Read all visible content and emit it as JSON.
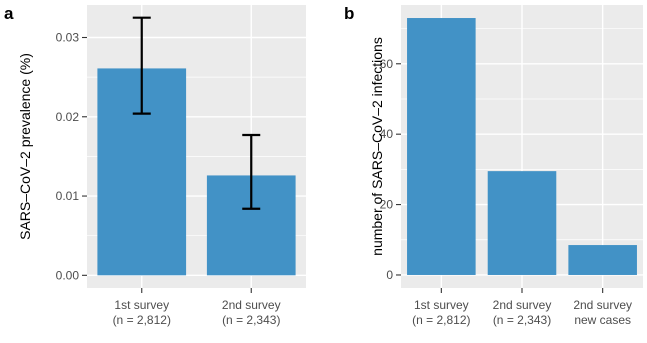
{
  "chart_data": [
    {
      "panel_label": "a",
      "type": "bar",
      "categories": [
        [
          "1st survey",
          "(n = 2,812)"
        ],
        [
          "2nd survey",
          "(n = 2,343)"
        ]
      ],
      "values": [
        0.0261,
        0.0126
      ],
      "error_bars": [
        {
          "low": 0.0204,
          "high": 0.0325
        },
        {
          "low": 0.0084,
          "high": 0.0177
        }
      ],
      "ylabel": "SARS–CoV–2 prevalence (%)",
      "xlabel": "",
      "yticks": [
        0.0,
        0.01,
        0.02,
        0.03
      ],
      "ytick_labels": [
        "0.00",
        "0.01",
        "0.02",
        "0.03"
      ],
      "ylim": [
        -0.0016,
        0.0341
      ],
      "bar_color": "#4292c6",
      "grid": true
    },
    {
      "panel_label": "b",
      "type": "bar",
      "categories": [
        [
          "1st survey",
          "(n = 2,812)"
        ],
        [
          "2nd survey",
          "(n = 2,343)"
        ],
        [
          "2nd survey",
          "new cases"
        ]
      ],
      "values": [
        73,
        29.5,
        8.5
      ],
      "ylabel": "number of SARS–CoV–2 infections",
      "xlabel": "",
      "yticks": [
        0,
        20,
        40,
        60
      ],
      "ytick_labels": [
        "0",
        "20",
        "40",
        "60"
      ],
      "ylim": [
        -3.7,
        76.7
      ],
      "bar_color": "#4292c6",
      "grid": true
    }
  ]
}
